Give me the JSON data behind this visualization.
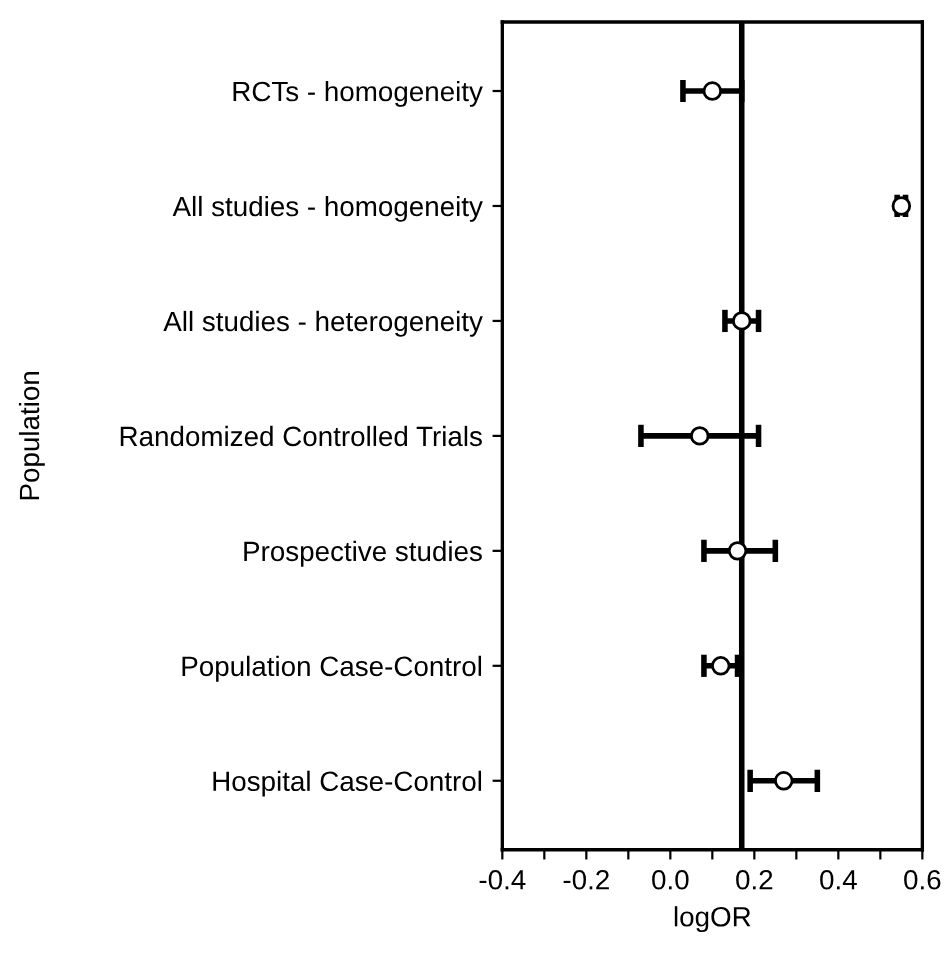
{
  "chart_data": {
    "type": "scatter",
    "orientation": "horizontal",
    "xlabel": "logOR",
    "ylabel": "Population",
    "categories": [
      "RCTs - homogeneity",
      "All studies - homogeneity",
      "All studies - heterogeneity",
      "Randomized Controlled Trials",
      "Prospective studies",
      "Population Case-Control",
      "Hospital Case-Control"
    ],
    "values": [
      0.1,
      0.55,
      0.17,
      0.07,
      0.16,
      0.12,
      0.27
    ],
    "errors": [
      [
        0.03,
        0.17
      ],
      [
        0.54,
        0.56
      ],
      [
        0.13,
        0.21
      ],
      [
        -0.07,
        0.21
      ],
      [
        0.08,
        0.25
      ],
      [
        0.08,
        0.16
      ],
      [
        0.19,
        0.35
      ]
    ],
    "color": "#000000",
    "marker": "circle",
    "xlim": [
      -0.4,
      0.6
    ],
    "xticks": [
      -0.4,
      {
        "value": -0.3,
        "label": null
      },
      -0.2,
      {
        "value": -0.1,
        "label": null
      },
      {
        "value": 0,
        "label": "0.0"
      },
      {
        "value": 0.1,
        "label": null
      },
      0.2,
      {
        "value": 0.3,
        "label": null
      },
      0.4,
      {
        "value": 0.5,
        "label": null
      },
      0.6
    ],
    "ref_lines": [
      {
        "axis": "x",
        "value": 0.17,
        "color": "#000000",
        "line_style": "solid"
      }
    ],
    "grid": false
  }
}
